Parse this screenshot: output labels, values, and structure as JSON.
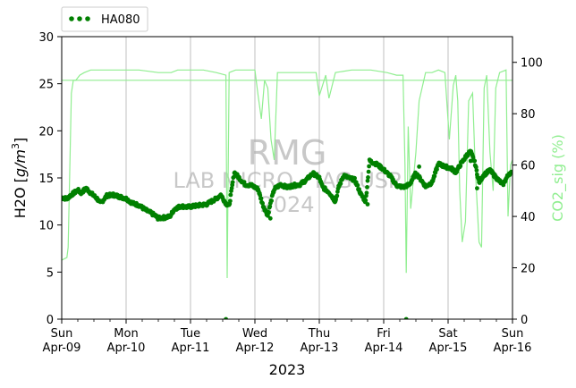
{
  "chart_data": {
    "type": "scatter",
    "title": "",
    "xlabel": "2023",
    "ylabel": "H2O [g/m³]",
    "ylabel_parts": {
      "base": "H2O [",
      "unit_main": "g/m",
      "unit_sup": "3",
      "close": "]"
    },
    "y2label": "CO2_sig (%)",
    "ylim": [
      0,
      30
    ],
    "y2lim": [
      0,
      110
    ],
    "yticks": [
      0,
      5,
      10,
      15,
      20,
      25,
      30
    ],
    "y2ticks": [
      0,
      20,
      40,
      60,
      80,
      100
    ],
    "xlim": [
      0,
      7
    ],
    "xticks": [
      {
        "day": 0,
        "label1": "Sun",
        "label2": "Apr-09"
      },
      {
        "day": 1,
        "label1": "Mon",
        "label2": "Apr-10"
      },
      {
        "day": 2,
        "label1": "Tue",
        "label2": "Apr-11"
      },
      {
        "day": 3,
        "label1": "Wed",
        "label2": "Apr-12"
      },
      {
        "day": 4,
        "label1": "Thu",
        "label2": "Apr-13"
      },
      {
        "day": 5,
        "label1": "Fri",
        "label2": "Apr-14"
      },
      {
        "day": 6,
        "label1": "Sat",
        "label2": "Apr-15"
      },
      {
        "day": 7,
        "label1": "Sun",
        "label2": "Apr-16"
      }
    ],
    "x_units": "days from Apr-09 00:00",
    "grid": "vertical major",
    "legend": {
      "position": "top-left-outside",
      "entries": [
        "HA080"
      ]
    },
    "watermark": {
      "line1": "RMG",
      "line2": "LAB MICRO - IAG USP",
      "line3": "2024"
    },
    "colors": {
      "h2o": "#008000",
      "co2": "#90ee90",
      "co2_label": "#90ee90",
      "watermark": "#c8c8c8"
    },
    "reference_line_y2": 93,
    "h2o_keypoints": [
      [
        0.0,
        12.9
      ],
      [
        0.08,
        12.8
      ],
      [
        0.15,
        13.2
      ],
      [
        0.25,
        13.7
      ],
      [
        0.3,
        13.4
      ],
      [
        0.38,
        13.9
      ],
      [
        0.45,
        13.4
      ],
      [
        0.55,
        12.8
      ],
      [
        0.6,
        12.3
      ],
      [
        0.7,
        13.1
      ],
      [
        0.8,
        13.2
      ],
      [
        0.9,
        13.0
      ],
      [
        1.0,
        12.8
      ],
      [
        1.1,
        12.3
      ],
      [
        1.2,
        12.1
      ],
      [
        1.3,
        11.6
      ],
      [
        1.38,
        11.3
      ],
      [
        1.45,
        11.0
      ],
      [
        1.5,
        10.7
      ],
      [
        1.6,
        10.8
      ],
      [
        1.68,
        10.9
      ],
      [
        1.75,
        11.7
      ],
      [
        1.85,
        12.0
      ],
      [
        1.95,
        11.9
      ],
      [
        2.05,
        12.0
      ],
      [
        2.15,
        12.1
      ],
      [
        2.25,
        12.2
      ],
      [
        2.3,
        12.4
      ],
      [
        2.4,
        12.8
      ],
      [
        2.47,
        13.2
      ],
      [
        2.55,
        12.3
      ],
      [
        2.6,
        12.0
      ],
      [
        2.68,
        15.6
      ],
      [
        2.78,
        14.8
      ],
      [
        2.85,
        14.3
      ],
      [
        2.95,
        14.2
      ],
      [
        3.05,
        13.8
      ],
      [
        3.12,
        12.2
      ],
      [
        3.2,
        11.0
      ],
      [
        3.25,
        12.5
      ],
      [
        3.3,
        13.8
      ],
      [
        3.4,
        14.3
      ],
      [
        3.5,
        14.0
      ],
      [
        3.6,
        14.2
      ],
      [
        3.7,
        14.3
      ],
      [
        3.8,
        14.8
      ],
      [
        3.9,
        15.5
      ],
      [
        4.0,
        15.0
      ],
      [
        4.05,
        14.0
      ],
      [
        4.15,
        13.5
      ],
      [
        4.25,
        12.5
      ],
      [
        4.3,
        14.0
      ],
      [
        4.38,
        15.3
      ],
      [
        4.45,
        15.0
      ],
      [
        4.55,
        14.8
      ],
      [
        4.65,
        13.2
      ],
      [
        4.72,
        12.5
      ],
      [
        4.78,
        16.8
      ],
      [
        4.88,
        16.5
      ],
      [
        4.98,
        16.0
      ],
      [
        5.1,
        15.2
      ],
      [
        5.2,
        14.2
      ],
      [
        5.3,
        14.0
      ],
      [
        5.4,
        14.3
      ],
      [
        5.5,
        15.5
      ],
      [
        5.58,
        14.8
      ],
      [
        5.65,
        14.1
      ],
      [
        5.75,
        14.5
      ],
      [
        5.85,
        16.5
      ],
      [
        5.95,
        16.2
      ],
      [
        6.05,
        16.0
      ],
      [
        6.12,
        15.6
      ],
      [
        6.2,
        16.5
      ],
      [
        6.3,
        17.5
      ],
      [
        6.35,
        17.8
      ],
      [
        6.42,
        16.5
      ],
      [
        6.48,
        14.5
      ],
      [
        6.55,
        15.3
      ],
      [
        6.65,
        15.8
      ],
      [
        6.75,
        15.0
      ],
      [
        6.85,
        14.3
      ],
      [
        6.95,
        15.5
      ],
      [
        7.0,
        15.5
      ]
    ],
    "h2o_outliers": [
      [
        2.55,
        0.0
      ],
      [
        5.35,
        0.0
      ],
      [
        3.24,
        10.7
      ],
      [
        3.2,
        11.4
      ],
      [
        4.75,
        12.2
      ],
      [
        6.45,
        13.9
      ],
      [
        5.55,
        16.2
      ],
      [
        6.35,
        16.8
      ]
    ],
    "co2_keypoints": [
      [
        0.0,
        23
      ],
      [
        0.08,
        24
      ],
      [
        0.1,
        28
      ],
      [
        0.15,
        88
      ],
      [
        0.18,
        93
      ],
      [
        0.22,
        93
      ],
      [
        0.28,
        95
      ],
      [
        0.35,
        96
      ],
      [
        0.45,
        97
      ],
      [
        1.0,
        97
      ],
      [
        1.2,
        97
      ],
      [
        1.5,
        96
      ],
      [
        1.7,
        96
      ],
      [
        1.8,
        97
      ],
      [
        2.2,
        97
      ],
      [
        2.4,
        96
      ],
      [
        2.55,
        95
      ],
      [
        2.57,
        16
      ],
      [
        2.6,
        96
      ],
      [
        2.7,
        97
      ],
      [
        2.9,
        97
      ],
      [
        3.0,
        97
      ],
      [
        3.05,
        87
      ],
      [
        3.1,
        78
      ],
      [
        3.15,
        93
      ],
      [
        3.2,
        90
      ],
      [
        3.25,
        70
      ],
      [
        3.3,
        62
      ],
      [
        3.35,
        96
      ],
      [
        3.6,
        96
      ],
      [
        3.8,
        96
      ],
      [
        3.95,
        96
      ],
      [
        4.0,
        87
      ],
      [
        4.1,
        95
      ],
      [
        4.15,
        86
      ],
      [
        4.25,
        96
      ],
      [
        4.5,
        97
      ],
      [
        4.8,
        97
      ],
      [
        5.05,
        96
      ],
      [
        5.2,
        95
      ],
      [
        5.3,
        95
      ],
      [
        5.33,
        60
      ],
      [
        5.35,
        18
      ],
      [
        5.38,
        75
      ],
      [
        5.42,
        43
      ],
      [
        5.5,
        65
      ],
      [
        5.55,
        85
      ],
      [
        5.65,
        96
      ],
      [
        5.75,
        96
      ],
      [
        5.85,
        97
      ],
      [
        5.95,
        96
      ],
      [
        6.02,
        70
      ],
      [
        6.08,
        91
      ],
      [
        6.12,
        95
      ],
      [
        6.15,
        85
      ],
      [
        6.18,
        50
      ],
      [
        6.22,
        30
      ],
      [
        6.27,
        38
      ],
      [
        6.32,
        85
      ],
      [
        6.38,
        88
      ],
      [
        6.42,
        60
      ],
      [
        6.48,
        30
      ],
      [
        6.52,
        28
      ],
      [
        6.56,
        90
      ],
      [
        6.6,
        95
      ],
      [
        6.65,
        65
      ],
      [
        6.7,
        50
      ],
      [
        6.74,
        90
      ],
      [
        6.8,
        96
      ],
      [
        6.9,
        97
      ],
      [
        6.93,
        40
      ],
      [
        6.97,
        60
      ],
      [
        7.0,
        62
      ]
    ]
  }
}
